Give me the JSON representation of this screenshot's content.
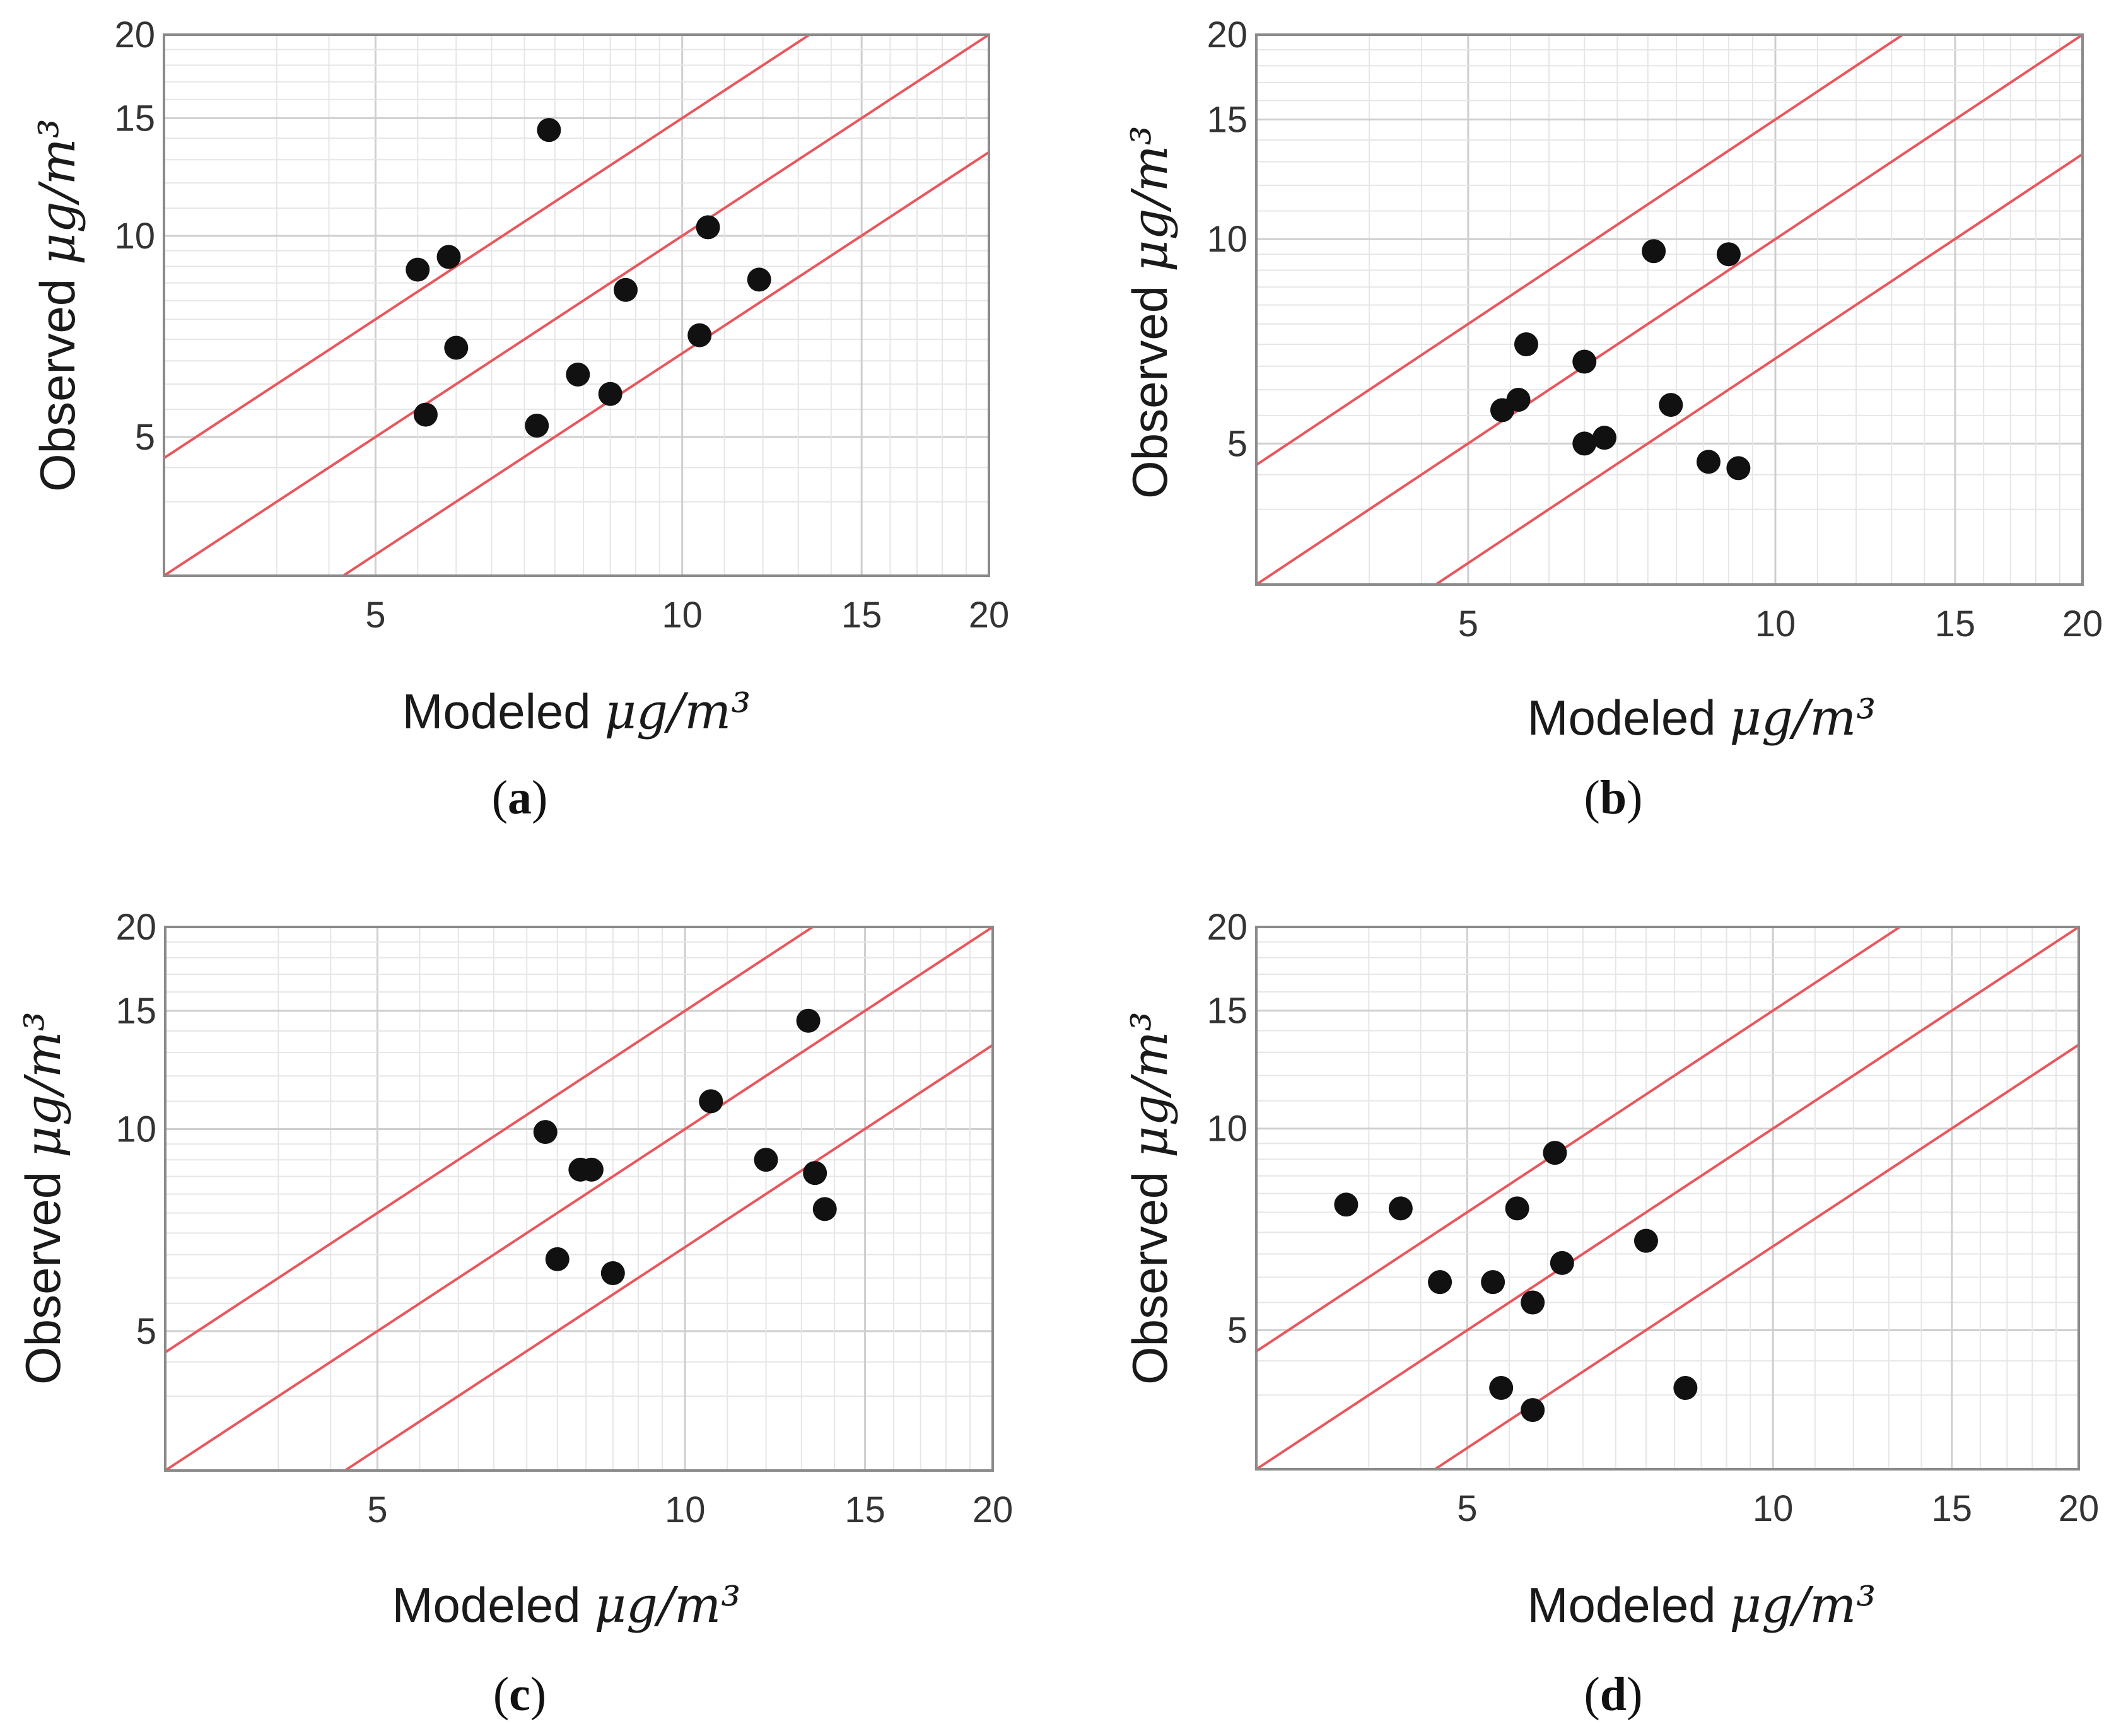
{
  "figure": {
    "style": {
      "frame_color": "#8a8a8a",
      "grid_major_color": "#cfcfcf",
      "grid_minor_color": "#e6e6e6",
      "ref_line_color": "#e8575d",
      "marker_color": "#111111",
      "tick_color": "#333333"
    }
  },
  "chart_data": [
    {
      "type": "scatter",
      "panel": "a",
      "caption": {
        "open": "(",
        "letter": "a",
        "close": ")"
      },
      "xlabel": {
        "text": "Modeled",
        "unit": "μg/m³"
      },
      "ylabel": {
        "text": "Observed",
        "unit": "μg/m³"
      },
      "xscale": "log",
      "yscale": "log",
      "xlim": [
        3.1,
        20
      ],
      "ylim": [
        3.1,
        20
      ],
      "xticks": [
        5,
        10,
        15,
        20
      ],
      "xtick_labels": [
        "5",
        "10",
        "15",
        "20"
      ],
      "yticks": [
        5,
        10,
        15,
        20
      ],
      "ytick_labels": [
        "5",
        "10",
        "15",
        "20"
      ],
      "reference_lines": [
        {
          "name": "1:1",
          "factor": 1
        },
        {
          "name": "factor-of-1.5 upper",
          "factor": 1.5
        },
        {
          "name": "factor-of-1.5 lower",
          "factor": 0.667
        }
      ],
      "points": [
        {
          "x": 5.5,
          "y": 8.9
        },
        {
          "x": 5.9,
          "y": 9.3
        },
        {
          "x": 5.6,
          "y": 5.4
        },
        {
          "x": 6.0,
          "y": 6.8
        },
        {
          "x": 7.4,
          "y": 14.4
        },
        {
          "x": 7.2,
          "y": 5.2
        },
        {
          "x": 7.9,
          "y": 6.2
        },
        {
          "x": 8.5,
          "y": 5.8
        },
        {
          "x": 8.8,
          "y": 8.3
        },
        {
          "x": 10.4,
          "y": 7.1
        },
        {
          "x": 10.6,
          "y": 10.3
        },
        {
          "x": 11.9,
          "y": 8.6
        }
      ]
    },
    {
      "type": "scatter",
      "panel": "b",
      "caption": {
        "open": "(",
        "letter": "b",
        "close": ")"
      },
      "xlabel": {
        "text": "Modeled",
        "unit": "μg/m³"
      },
      "ylabel": {
        "text": "Observed",
        "unit": "μg/m³"
      },
      "xscale": "log",
      "yscale": "log",
      "xlim": [
        3.1,
        20
      ],
      "ylim": [
        3.1,
        20
      ],
      "xticks": [
        5,
        10,
        15,
        20
      ],
      "xtick_labels": [
        "5",
        "10",
        "15",
        "20"
      ],
      "yticks": [
        5,
        10,
        15,
        20
      ],
      "ytick_labels": [
        "5",
        "10",
        "15",
        "20"
      ],
      "reference_lines": [
        {
          "name": "1:1",
          "factor": 1
        },
        {
          "name": "factor-of-1.5 upper",
          "factor": 1.5
        },
        {
          "name": "factor-of-1.5 lower",
          "factor": 0.667
        }
      ],
      "points": [
        {
          "x": 5.4,
          "y": 5.6
        },
        {
          "x": 5.6,
          "y": 5.8
        },
        {
          "x": 5.7,
          "y": 7.0
        },
        {
          "x": 6.5,
          "y": 6.6
        },
        {
          "x": 6.5,
          "y": 5.0
        },
        {
          "x": 6.8,
          "y": 5.1
        },
        {
          "x": 7.6,
          "y": 9.6
        },
        {
          "x": 7.9,
          "y": 5.7
        },
        {
          "x": 8.6,
          "y": 4.7
        },
        {
          "x": 9.0,
          "y": 9.5
        },
        {
          "x": 9.2,
          "y": 4.6
        }
      ]
    },
    {
      "type": "scatter",
      "panel": "c",
      "caption": {
        "open": "(",
        "letter": "c",
        "close": ")"
      },
      "xlabel": {
        "text": "Modeled",
        "unit": "μg/m³"
      },
      "ylabel": {
        "text": "Observed",
        "unit": "μg/m³"
      },
      "xscale": "log",
      "yscale": "log",
      "xlim": [
        3.1,
        20
      ],
      "ylim": [
        3.1,
        20
      ],
      "xticks": [
        5,
        10,
        15,
        20
      ],
      "xtick_labels": [
        "5",
        "10",
        "15",
        "20"
      ],
      "yticks": [
        5,
        10,
        15,
        20
      ],
      "ytick_labels": [
        "5",
        "10",
        "15",
        "20"
      ],
      "reference_lines": [
        {
          "name": "1:1",
          "factor": 1
        },
        {
          "name": "factor-of-1.5 upper",
          "factor": 1.5
        },
        {
          "name": "factor-of-1.5 lower",
          "factor": 0.667
        }
      ],
      "points": [
        {
          "x": 7.3,
          "y": 9.9
        },
        {
          "x": 7.5,
          "y": 6.4
        },
        {
          "x": 7.9,
          "y": 8.7
        },
        {
          "x": 8.1,
          "y": 8.7
        },
        {
          "x": 8.5,
          "y": 6.1
        },
        {
          "x": 10.6,
          "y": 11.0
        },
        {
          "x": 12.0,
          "y": 9.0
        },
        {
          "x": 13.2,
          "y": 14.5
        },
        {
          "x": 13.4,
          "y": 8.6
        },
        {
          "x": 13.7,
          "y": 7.6
        }
      ]
    },
    {
      "type": "scatter",
      "panel": "d",
      "caption": {
        "open": "(",
        "letter": "d",
        "close": ")"
      },
      "xlabel": {
        "text": "Modeled",
        "unit": "μg/m³"
      },
      "ylabel": {
        "text": "Observed",
        "unit": "μg/m³"
      },
      "xscale": "log",
      "yscale": "log",
      "xlim": [
        3.1,
        20
      ],
      "ylim": [
        3.1,
        20
      ],
      "xticks": [
        5,
        10,
        15,
        20
      ],
      "xtick_labels": [
        "5",
        "10",
        "15",
        "20"
      ],
      "yticks": [
        5,
        10,
        15,
        20
      ],
      "ytick_labels": [
        "5",
        "10",
        "15",
        "20"
      ],
      "reference_lines": [
        {
          "name": "1:1",
          "factor": 1
        },
        {
          "name": "factor-of-1.5 upper",
          "factor": 1.5
        },
        {
          "name": "factor-of-1.5 lower",
          "factor": 0.667
        }
      ],
      "points": [
        {
          "x": 3.8,
          "y": 7.7
        },
        {
          "x": 4.3,
          "y": 7.6
        },
        {
          "x": 4.7,
          "y": 5.9
        },
        {
          "x": 5.3,
          "y": 5.9
        },
        {
          "x": 5.4,
          "y": 4.1
        },
        {
          "x": 5.6,
          "y": 7.6
        },
        {
          "x": 5.8,
          "y": 5.5
        },
        {
          "x": 5.8,
          "y": 3.8
        },
        {
          "x": 6.1,
          "y": 9.2
        },
        {
          "x": 6.2,
          "y": 6.3
        },
        {
          "x": 7.5,
          "y": 6.8
        },
        {
          "x": 8.2,
          "y": 4.1
        }
      ]
    }
  ]
}
